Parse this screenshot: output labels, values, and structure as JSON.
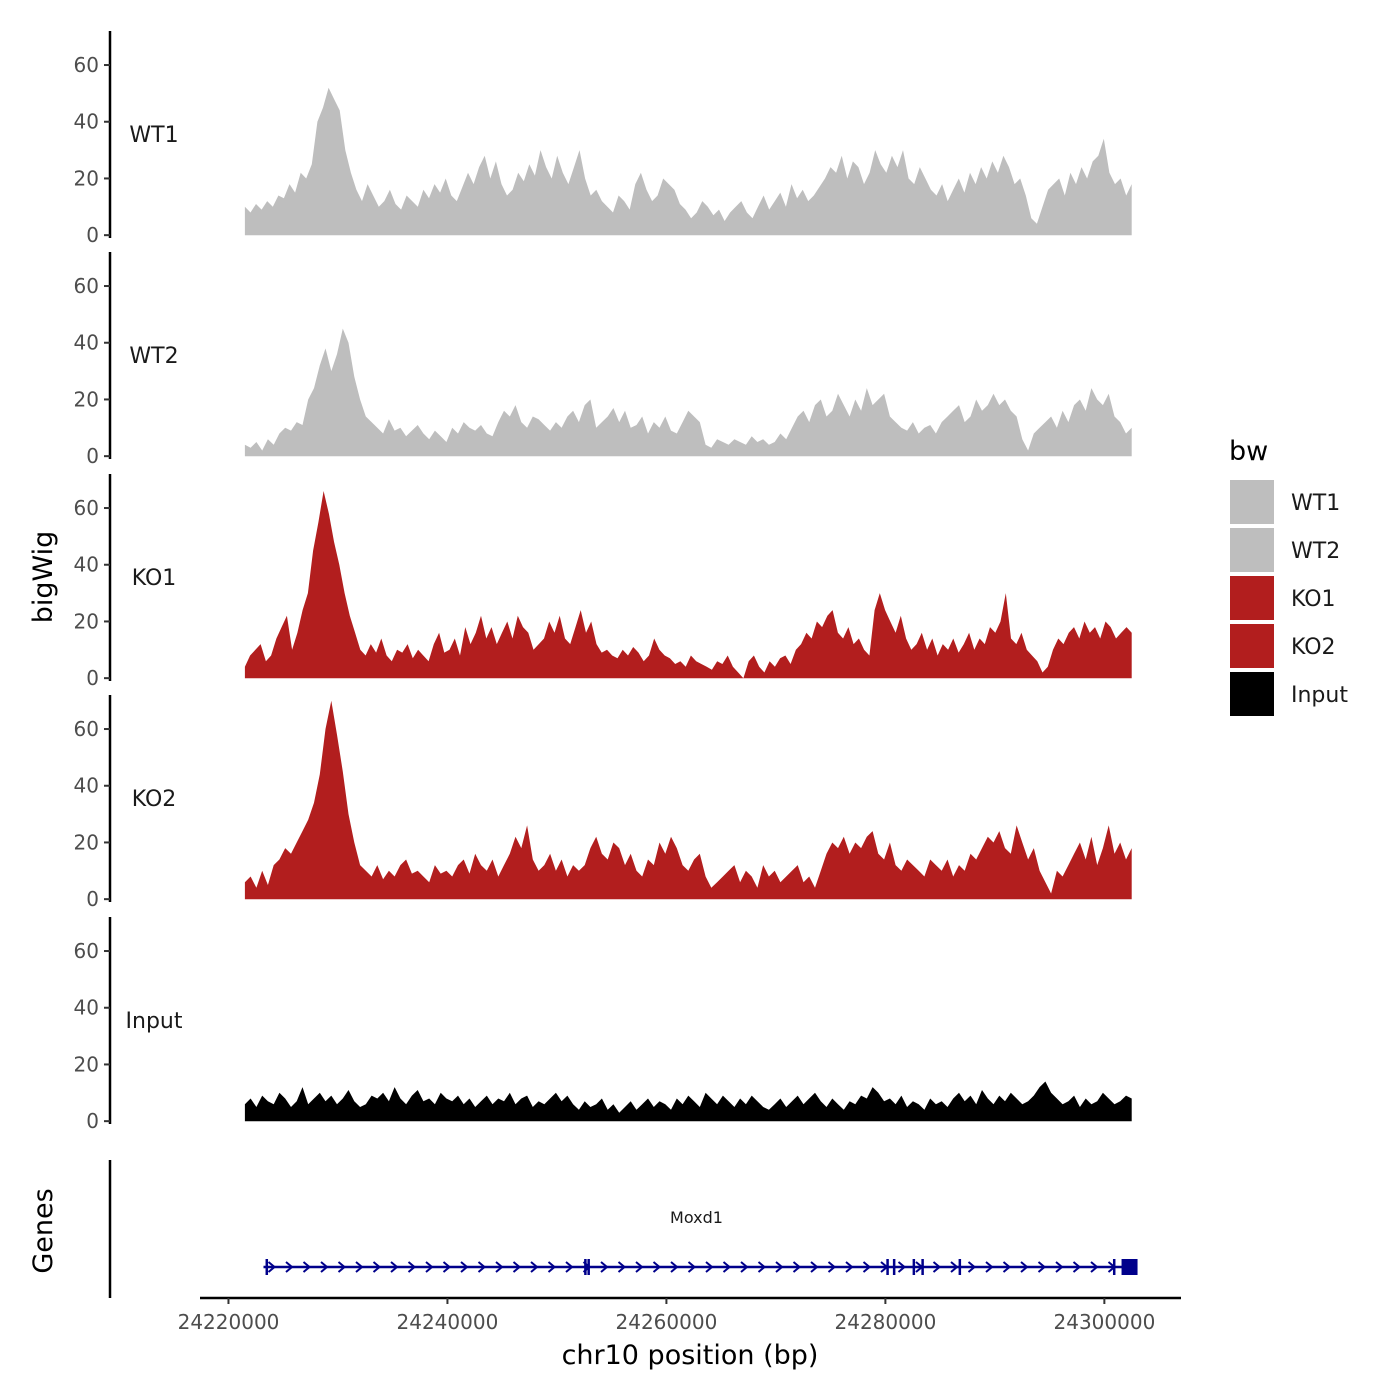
{
  "chart_data": {
    "type": "area",
    "chrom": "chr10",
    "x_axis": {
      "title": "chr10 position (bp)",
      "ticks": [
        24220000,
        24240000,
        24260000,
        24280000,
        24300000
      ],
      "tick_labels": [
        "24220000",
        "24240000",
        "24260000",
        "24280000",
        "24300000"
      ],
      "range": [
        24217400,
        24307000
      ]
    },
    "y_axis": {
      "title": "bigWig",
      "ticks": [
        0,
        20,
        40,
        60
      ],
      "tick_labels": [
        "0",
        "20",
        "40",
        "60"
      ],
      "range": [
        -1,
        72
      ]
    },
    "x_data_range": [
      24221500,
      24302500
    ],
    "tracks": [
      {
        "name": "WT1",
        "color": "#bebebe",
        "values": [
          10,
          8,
          11,
          9,
          12,
          10,
          14,
          13,
          18,
          15,
          22,
          20,
          25,
          40,
          45,
          52,
          48,
          44,
          30,
          22,
          16,
          12,
          18,
          14,
          10,
          12,
          16,
          11,
          9,
          14,
          12,
          10,
          16,
          13,
          18,
          15,
          20,
          14,
          12,
          17,
          22,
          18,
          24,
          28,
          20,
          26,
          18,
          14,
          16,
          22,
          19,
          25,
          21,
          30,
          24,
          20,
          28,
          22,
          18,
          24,
          30,
          20,
          14,
          16,
          12,
          10,
          8,
          14,
          12,
          9,
          18,
          22,
          16,
          12,
          14,
          20,
          18,
          16,
          11,
          9,
          6,
          8,
          12,
          10,
          7,
          9,
          5,
          8,
          10,
          12,
          8,
          6,
          10,
          14,
          9,
          12,
          15,
          10,
          18,
          13,
          16,
          12,
          14,
          17,
          20,
          24,
          22,
          28,
          20,
          26,
          24,
          18,
          22,
          30,
          25,
          22,
          28,
          24,
          30,
          20,
          18,
          24,
          20,
          16,
          14,
          18,
          12,
          16,
          20,
          15,
          22,
          18,
          24,
          20,
          26,
          22,
          28,
          24,
          18,
          20,
          14,
          6,
          4,
          10,
          16,
          18,
          20,
          14,
          22,
          18,
          24,
          20,
          26,
          28,
          34,
          22,
          18,
          20,
          14,
          18
        ]
      },
      {
        "name": "WT2",
        "color": "#bebebe",
        "values": [
          4,
          3,
          5,
          2,
          6,
          4,
          8,
          10,
          9,
          12,
          11,
          20,
          24,
          32,
          38,
          30,
          36,
          45,
          40,
          28,
          20,
          14,
          12,
          10,
          8,
          13,
          9,
          10,
          7,
          9,
          11,
          8,
          6,
          9,
          7,
          5,
          10,
          8,
          12,
          10,
          9,
          11,
          8,
          7,
          12,
          16,
          14,
          18,
          12,
          10,
          14,
          13,
          11,
          9,
          12,
          10,
          14,
          16,
          12,
          18,
          20,
          10,
          12,
          14,
          17,
          12,
          16,
          10,
          11,
          14,
          8,
          12,
          10,
          14,
          9,
          8,
          12,
          16,
          14,
          12,
          4,
          3,
          6,
          5,
          4,
          6,
          5,
          4,
          7,
          5,
          6,
          4,
          5,
          8,
          6,
          10,
          14,
          16,
          12,
          18,
          20,
          14,
          16,
          22,
          18,
          14,
          20,
          16,
          24,
          18,
          20,
          22,
          14,
          12,
          10,
          9,
          12,
          8,
          10,
          11,
          8,
          12,
          14,
          16,
          18,
          12,
          14,
          20,
          16,
          18,
          22,
          18,
          20,
          16,
          14,
          6,
          2,
          8,
          10,
          12,
          14,
          10,
          16,
          12,
          18,
          20,
          16,
          24,
          20,
          18,
          22,
          14,
          12,
          8,
          10
        ]
      },
      {
        "name": "KO1",
        "color": "#b21e1e",
        "values": [
          4,
          8,
          10,
          12,
          6,
          8,
          14,
          18,
          22,
          10,
          16,
          24,
          30,
          45,
          55,
          66,
          58,
          48,
          40,
          30,
          22,
          16,
          10,
          8,
          12,
          9,
          14,
          8,
          6,
          10,
          9,
          12,
          7,
          10,
          8,
          6,
          12,
          16,
          9,
          10,
          14,
          8,
          18,
          12,
          16,
          22,
          14,
          18,
          12,
          16,
          20,
          14,
          22,
          18,
          16,
          10,
          12,
          14,
          20,
          16,
          22,
          14,
          12,
          18,
          24,
          16,
          20,
          12,
          9,
          10,
          8,
          7,
          10,
          8,
          11,
          9,
          6,
          8,
          14,
          10,
          8,
          7,
          5,
          6,
          4,
          8,
          6,
          5,
          4,
          3,
          6,
          5,
          8,
          4,
          2,
          0,
          6,
          8,
          4,
          2,
          6,
          4,
          7,
          8,
          5,
          10,
          12,
          16,
          14,
          20,
          18,
          22,
          24,
          16,
          14,
          18,
          12,
          14,
          10,
          8,
          24,
          30,
          24,
          20,
          16,
          22,
          14,
          10,
          12,
          16,
          10,
          14,
          8,
          12,
          10,
          14,
          9,
          12,
          16,
          10,
          14,
          12,
          18,
          16,
          20,
          30,
          14,
          12,
          16,
          10,
          8,
          6,
          2,
          4,
          10,
          14,
          12,
          16,
          18,
          14,
          20,
          16,
          18,
          14,
          20,
          18,
          14,
          16,
          18,
          16
        ]
      },
      {
        "name": "KO2",
        "color": "#b21e1e",
        "values": [
          6,
          8,
          4,
          10,
          5,
          12,
          14,
          18,
          16,
          20,
          24,
          28,
          34,
          44,
          60,
          70,
          58,
          45,
          30,
          20,
          12,
          10,
          8,
          12,
          7,
          10,
          8,
          12,
          14,
          9,
          10,
          8,
          6,
          12,
          9,
          10,
          8,
          12,
          14,
          9,
          16,
          12,
          10,
          14,
          8,
          12,
          16,
          22,
          18,
          26,
          14,
          10,
          12,
          16,
          10,
          14,
          8,
          12,
          10,
          12,
          18,
          22,
          16,
          14,
          20,
          18,
          12,
          16,
          10,
          8,
          14,
          12,
          20,
          16,
          22,
          18,
          12,
          10,
          14,
          16,
          8,
          4,
          6,
          8,
          10,
          12,
          6,
          10,
          8,
          4,
          12,
          8,
          10,
          6,
          8,
          10,
          12,
          6,
          8,
          4,
          10,
          16,
          20,
          18,
          22,
          16,
          20,
          18,
          22,
          24,
          16,
          14,
          20,
          12,
          10,
          14,
          12,
          10,
          8,
          14,
          12,
          10,
          14,
          8,
          12,
          10,
          16,
          14,
          18,
          22,
          20,
          24,
          18,
          16,
          26,
          20,
          14,
          18,
          10,
          6,
          2,
          10,
          8,
          12,
          16,
          20,
          14,
          22,
          12,
          18,
          26,
          16,
          20,
          14,
          18
        ]
      },
      {
        "name": "Input",
        "color": "#000000",
        "values": [
          6,
          8,
          5,
          9,
          7,
          6,
          10,
          8,
          5,
          7,
          12,
          6,
          8,
          10,
          7,
          9,
          6,
          8,
          11,
          7,
          5,
          6,
          9,
          8,
          10,
          7,
          12,
          8,
          6,
          9,
          11,
          7,
          8,
          6,
          10,
          8,
          7,
          9,
          6,
          8,
          5,
          7,
          9,
          6,
          8,
          7,
          10,
          6,
          8,
          9,
          5,
          7,
          6,
          8,
          10,
          7,
          9,
          6,
          4,
          7,
          5,
          6,
          8,
          4,
          6,
          3,
          5,
          7,
          4,
          6,
          8,
          5,
          7,
          6,
          4,
          8,
          6,
          9,
          7,
          5,
          10,
          8,
          6,
          9,
          7,
          5,
          8,
          6,
          9,
          7,
          5,
          4,
          6,
          8,
          5,
          7,
          9,
          6,
          8,
          10,
          7,
          5,
          8,
          6,
          4,
          7,
          6,
          9,
          8,
          12,
          10,
          7,
          8,
          6,
          9,
          5,
          7,
          6,
          4,
          8,
          6,
          7,
          5,
          8,
          10,
          7,
          9,
          6,
          11,
          8,
          6,
          9,
          7,
          10,
          8,
          6,
          7,
          9,
          12,
          14,
          10,
          8,
          6,
          7,
          9,
          5,
          8,
          6,
          7,
          10,
          8,
          6,
          7,
          9,
          8
        ]
      }
    ],
    "legend": {
      "title": "bw",
      "position": "right",
      "entries": [
        {
          "label": "WT1",
          "color": "#bebebe"
        },
        {
          "label": "WT2",
          "color": "#bebebe"
        },
        {
          "label": "KO1",
          "color": "#b21e1e"
        },
        {
          "label": "KO2",
          "color": "#b21e1e"
        },
        {
          "label": "Input",
          "color": "#000000"
        }
      ]
    },
    "genes_track": {
      "title": "Genes",
      "color": "#00008b",
      "genes": [
        {
          "name": "Moxd1",
          "strand": "+",
          "start": 24223200,
          "end": 24302300,
          "exons": [
            24223500,
            24252600,
            24252900,
            24280200,
            24280800,
            24282600,
            24283400,
            24286800,
            24300900,
            24301900
          ]
        }
      ]
    }
  }
}
